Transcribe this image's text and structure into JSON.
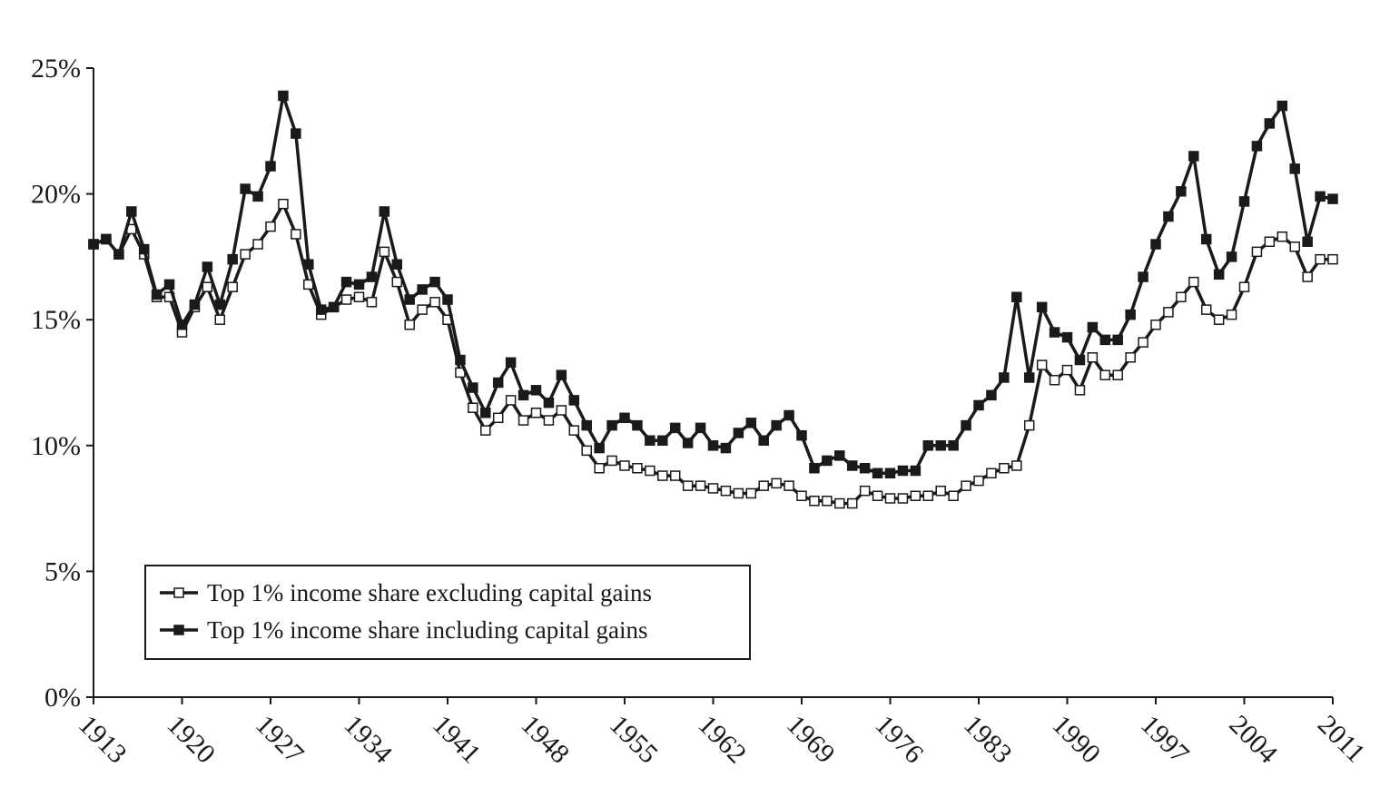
{
  "chart_data": {
    "type": "line",
    "title": "",
    "xlabel": "",
    "ylabel": "",
    "xlim": [
      1913,
      2011
    ],
    "ylim": [
      0,
      25
    ],
    "x_ticks": [
      1913,
      1920,
      1927,
      1934,
      1941,
      1948,
      1955,
      1962,
      1969,
      1976,
      1983,
      1990,
      1997,
      2004,
      2011
    ],
    "y_ticks": [
      0,
      5,
      10,
      15,
      20,
      25
    ],
    "y_tick_labels": [
      "0%",
      "5%",
      "10%",
      "15%",
      "20%",
      "25%"
    ],
    "grid": false,
    "legend_position": "bottom-left",
    "x": [
      1913,
      1914,
      1915,
      1916,
      1917,
      1918,
      1919,
      1920,
      1921,
      1922,
      1923,
      1924,
      1925,
      1926,
      1927,
      1928,
      1929,
      1930,
      1931,
      1932,
      1933,
      1934,
      1935,
      1936,
      1937,
      1938,
      1939,
      1940,
      1941,
      1942,
      1943,
      1944,
      1945,
      1946,
      1947,
      1948,
      1949,
      1950,
      1951,
      1952,
      1953,
      1954,
      1955,
      1956,
      1957,
      1958,
      1959,
      1960,
      1961,
      1962,
      1963,
      1964,
      1965,
      1966,
      1967,
      1968,
      1969,
      1970,
      1971,
      1972,
      1973,
      1974,
      1975,
      1976,
      1977,
      1978,
      1979,
      1980,
      1981,
      1982,
      1983,
      1984,
      1985,
      1986,
      1987,
      1988,
      1989,
      1990,
      1991,
      1992,
      1993,
      1994,
      1995,
      1996,
      1997,
      1998,
      1999,
      2000,
      2001,
      2002,
      2003,
      2004,
      2005,
      2006,
      2007,
      2008,
      2009,
      2010,
      2011
    ],
    "series": [
      {
        "name": "Top 1% income share excluding capital gains",
        "marker": "open-square",
        "color": "#1a1a1a",
        "values": [
          18.0,
          18.2,
          17.6,
          18.6,
          17.6,
          15.9,
          15.9,
          14.5,
          15.5,
          16.3,
          15.0,
          16.3,
          17.6,
          18.0,
          18.7,
          19.6,
          18.4,
          16.4,
          15.2,
          15.5,
          15.8,
          15.9,
          15.7,
          17.7,
          16.5,
          14.8,
          15.4,
          15.7,
          15.0,
          12.9,
          11.5,
          10.6,
          11.1,
          11.8,
          11.0,
          11.3,
          11.0,
          11.4,
          10.6,
          9.8,
          9.1,
          9.4,
          9.2,
          9.1,
          9.0,
          8.8,
          8.8,
          8.4,
          8.4,
          8.3,
          8.2,
          8.1,
          8.1,
          8.4,
          8.5,
          8.4,
          8.0,
          7.8,
          7.8,
          7.7,
          7.7,
          8.2,
          8.0,
          7.9,
          7.9,
          8.0,
          8.0,
          8.2,
          8.0,
          8.4,
          8.6,
          8.9,
          9.1,
          9.2,
          10.8,
          13.2,
          12.6,
          13.0,
          12.2,
          13.5,
          12.8,
          12.8,
          13.5,
          14.1,
          14.8,
          15.3,
          15.9,
          16.5,
          15.4,
          15.0,
          15.2,
          16.3,
          17.7,
          18.1,
          18.3,
          17.9,
          16.7,
          17.4,
          17.4
        ]
      },
      {
        "name": "Top 1% income share including capital gains",
        "marker": "filled-square",
        "color": "#1a1a1a",
        "values": [
          18.0,
          18.2,
          17.6,
          19.3,
          17.8,
          16.0,
          16.4,
          14.8,
          15.6,
          17.1,
          15.6,
          17.4,
          20.2,
          19.9,
          21.1,
          23.9,
          22.4,
          17.2,
          15.4,
          15.5,
          16.5,
          16.4,
          16.7,
          19.3,
          17.2,
          15.8,
          16.2,
          16.5,
          15.8,
          13.4,
          12.3,
          11.3,
          12.5,
          13.3,
          12.0,
          12.2,
          11.7,
          12.8,
          11.8,
          10.8,
          9.9,
          10.8,
          11.1,
          10.8,
          10.2,
          10.2,
          10.7,
          10.1,
          10.7,
          10.0,
          9.9,
          10.5,
          10.9,
          10.2,
          10.8,
          11.2,
          10.4,
          9.1,
          9.4,
          9.6,
          9.2,
          9.1,
          8.9,
          8.9,
          9.0,
          9.0,
          10.0,
          10.0,
          10.0,
          10.8,
          11.6,
          12.0,
          12.7,
          15.9,
          12.7,
          15.5,
          14.5,
          14.3,
          13.4,
          14.7,
          14.2,
          14.2,
          15.2,
          16.7,
          18.0,
          19.1,
          20.1,
          21.5,
          18.2,
          16.8,
          17.5,
          19.7,
          21.9,
          22.8,
          23.5,
          21.0,
          18.1,
          19.9,
          19.8
        ]
      }
    ]
  }
}
